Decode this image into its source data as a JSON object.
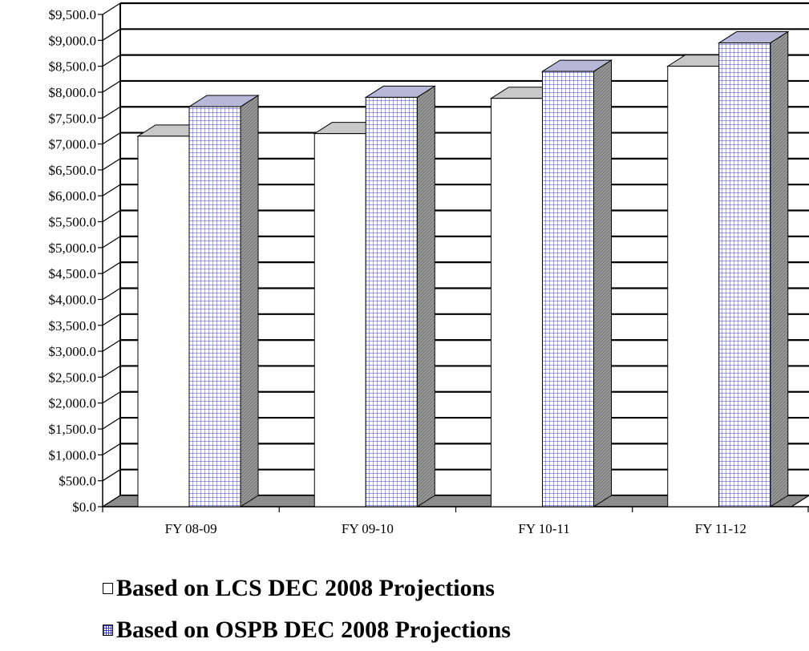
{
  "chart_data": {
    "type": "bar",
    "categories": [
      "FY 08-09",
      "FY 09-10",
      "FY 10-11",
      "FY 11-12"
    ],
    "series": [
      {
        "name": "Based on LCS DEC 2008 Projections",
        "values": [
          7150,
          7200,
          7880,
          8500
        ]
      },
      {
        "name": "Based on OSPB DEC 2008 Projections",
        "values": [
          7720,
          7900,
          8400,
          8950
        ]
      }
    ],
    "yticks": [
      "$0.0",
      "$500.0",
      "$1,000.0",
      "$1,500.0",
      "$2,000.0",
      "$2,500.0",
      "$3,000.0",
      "$3,500.0",
      "$4,000.0",
      "$4,500.0",
      "$5,000.0",
      "$5,500.0",
      "$6,000.0",
      "$6,500.0",
      "$7,000.0",
      "$7,500.0",
      "$8,000.0",
      "$8,500.0",
      "$9,000.0",
      "$9,500.0"
    ],
    "ylim": [
      0,
      9500
    ],
    "grid": true,
    "legend_position": "bottom",
    "colors": {
      "lcs_fill": "#ffffff",
      "ospb_pattern": "#3b3bd6",
      "side": "#8a8a8a",
      "floor": "#8c8c8c"
    }
  }
}
